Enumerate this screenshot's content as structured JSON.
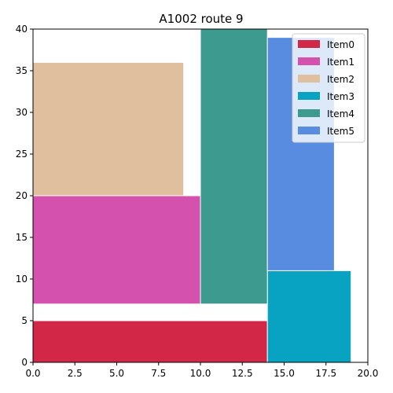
{
  "chart_data": {
    "type": "packing",
    "title": "A1002 route 9",
    "xlabel": "",
    "ylabel": "",
    "xlim": [
      0,
      20
    ],
    "ylim": [
      0,
      40
    ],
    "xticks": [
      "0.0",
      "2.5",
      "5.0",
      "7.5",
      "10.0",
      "12.5",
      "15.0",
      "17.5",
      "20.0"
    ],
    "yticks": [
      "0",
      "5",
      "10",
      "15",
      "20",
      "25",
      "30",
      "35",
      "40"
    ],
    "legend_position": "top-right",
    "items": [
      {
        "name": "Item0",
        "color": "#d32748",
        "x": 0,
        "y": 0,
        "w": 14,
        "h": 5
      },
      {
        "name": "Item1",
        "color": "#d451ad",
        "x": 0,
        "y": 7,
        "w": 10,
        "h": 13
      },
      {
        "name": "Item2",
        "color": "#dfbf9e",
        "x": 0,
        "y": 20,
        "w": 9,
        "h": 16
      },
      {
        "name": "Item3",
        "color": "#08a3c2",
        "x": 14,
        "y": 0,
        "w": 5,
        "h": 11
      },
      {
        "name": "Item4",
        "color": "#3d9a8f",
        "x": 10,
        "y": 7,
        "w": 4,
        "h": 33
      },
      {
        "name": "Item5",
        "color": "#588ce0",
        "x": 14,
        "y": 11,
        "w": 4,
        "h": 28
      }
    ]
  }
}
